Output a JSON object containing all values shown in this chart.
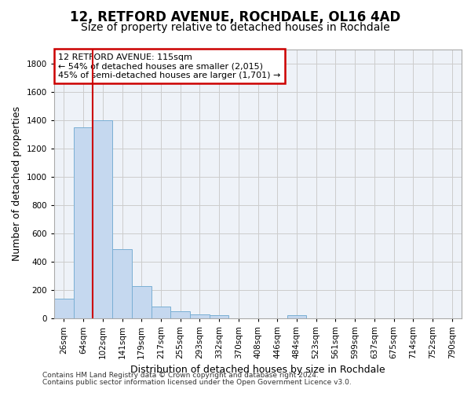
{
  "title_line1": "12, RETFORD AVENUE, ROCHDALE, OL16 4AD",
  "title_line2": "Size of property relative to detached houses in Rochdale",
  "xlabel": "Distribution of detached houses by size in Rochdale",
  "ylabel": "Number of detached properties",
  "bar_labels": [
    "26sqm",
    "64sqm",
    "102sqm",
    "141sqm",
    "179sqm",
    "217sqm",
    "255sqm",
    "293sqm",
    "332sqm",
    "370sqm",
    "408sqm",
    "446sqm",
    "484sqm",
    "523sqm",
    "561sqm",
    "599sqm",
    "637sqm",
    "675sqm",
    "714sqm",
    "752sqm",
    "790sqm"
  ],
  "bar_values": [
    140,
    1350,
    1400,
    490,
    230,
    85,
    50,
    28,
    20,
    0,
    0,
    0,
    20,
    0,
    0,
    0,
    0,
    0,
    0,
    0,
    0
  ],
  "bar_color": "#c5d8ef",
  "bar_edge_color": "#7aafd4",
  "vline_color": "#cc0000",
  "annotation_text": "12 RETFORD AVENUE: 115sqm\n← 54% of detached houses are smaller (2,015)\n45% of semi-detached houses are larger (1,701) →",
  "annotation_box_color": "#ffffff",
  "annotation_box_edge": "#cc0000",
  "ylim": [
    0,
    1900
  ],
  "yticks": [
    0,
    200,
    400,
    600,
    800,
    1000,
    1200,
    1400,
    1600,
    1800
  ],
  "grid_color": "#cccccc",
  "bg_color": "#eef2f8",
  "footer_line1": "Contains HM Land Registry data © Crown copyright and database right 2024.",
  "footer_line2": "Contains public sector information licensed under the Open Government Licence v3.0.",
  "title_fontsize": 12,
  "subtitle_fontsize": 10,
  "axis_label_fontsize": 9,
  "tick_fontsize": 7.5,
  "footer_fontsize": 6.5
}
